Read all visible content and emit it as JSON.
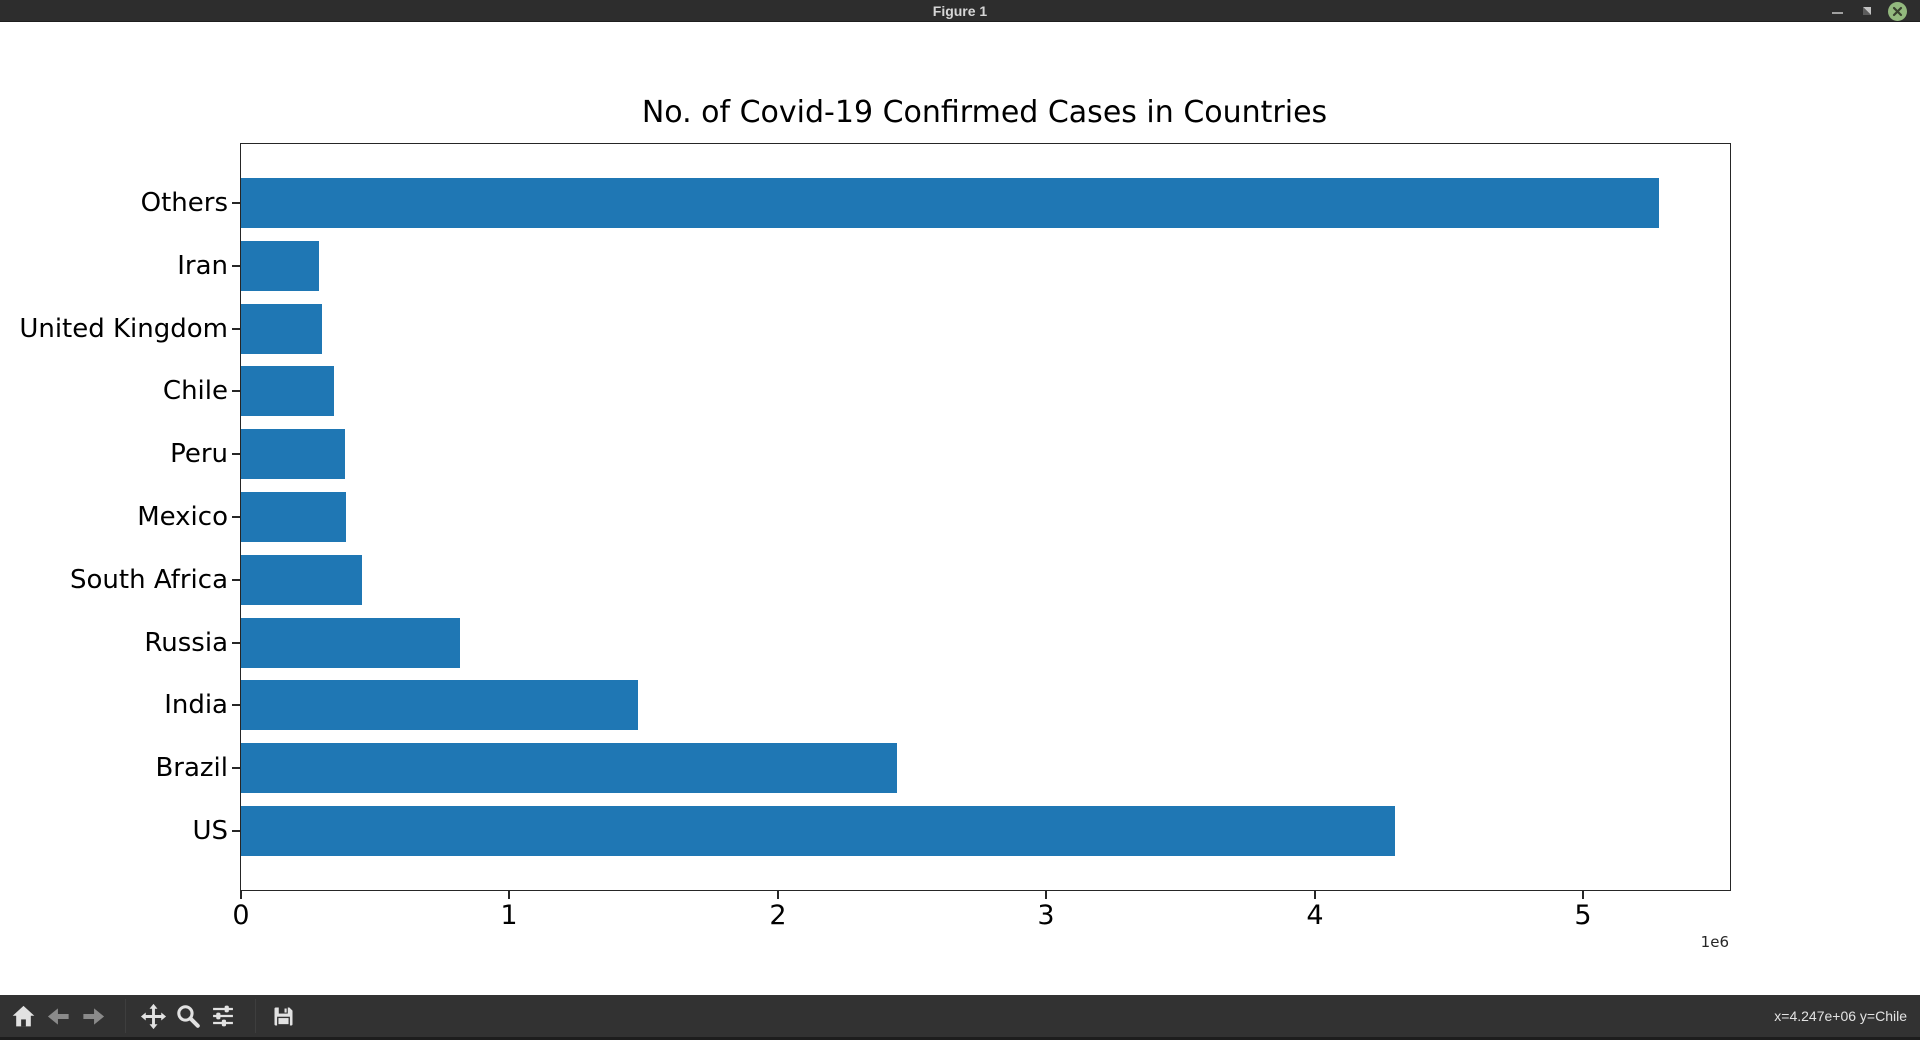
{
  "window": {
    "title": "Figure 1"
  },
  "chart_data": {
    "type": "bar",
    "orientation": "horizontal",
    "title": "No. of Covid-19 Confirmed Cases in Countries",
    "categories": [
      "Others",
      "Iran",
      "United Kingdom",
      "Chile",
      "Peru",
      "Mexico",
      "South Africa",
      "Russia",
      "India",
      "Brazil",
      "US"
    ],
    "values": [
      5282000,
      291000,
      300000,
      347000,
      387000,
      390000,
      450000,
      816000,
      1479000,
      2444000,
      4300000
    ],
    "bar_color": "#1f77b4",
    "xlabel": "",
    "ylabel": "",
    "x_tick_labels": [
      "0",
      "1",
      "2",
      "3",
      "4",
      "5"
    ],
    "x_tick_values": [
      0,
      1000000,
      2000000,
      3000000,
      4000000,
      5000000
    ],
    "x_offset_label": "1e6",
    "xlim": [
      0,
      5546000
    ],
    "grid": false,
    "legend": null
  },
  "toolbar": {
    "icons": [
      "home-icon",
      "back-icon",
      "forward-icon",
      "pan-icon",
      "zoom-icon",
      "subplots-icon",
      "save-icon"
    ],
    "status": "x=4.247e+06 y=Chile"
  },
  "colors": {
    "bar": "#1f77b4",
    "titlebar_bg": "#2d2d2d",
    "toolbar_bg": "#323232",
    "close_button": "#93b97e"
  }
}
